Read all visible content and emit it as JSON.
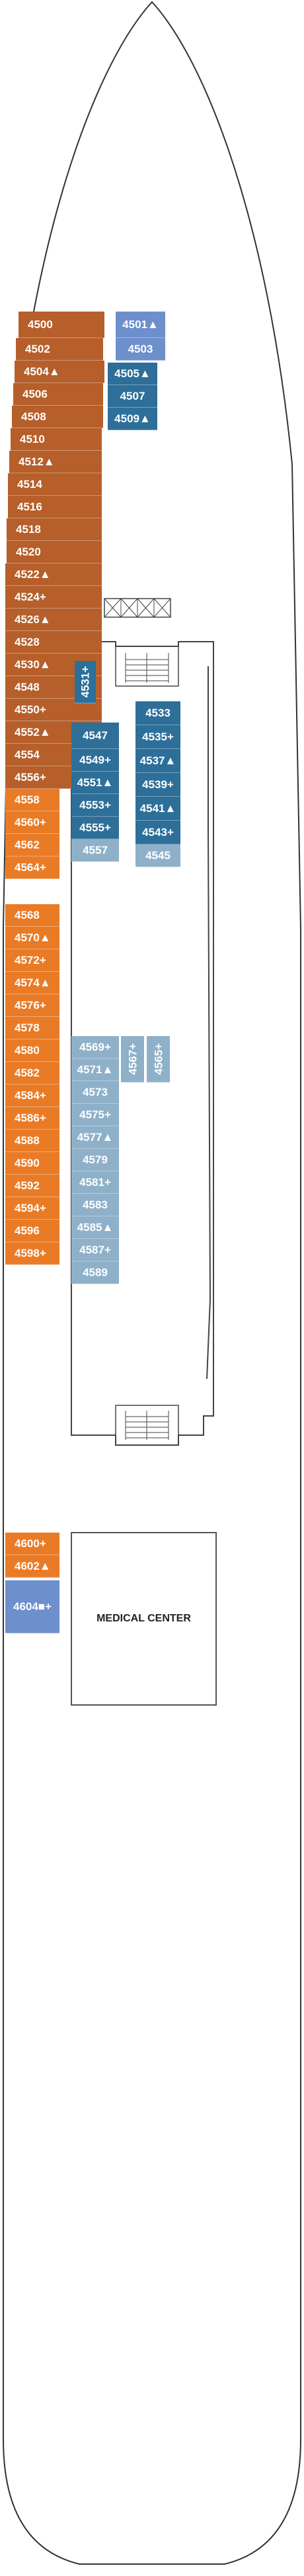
{
  "deck": {
    "hull_color": "#333333",
    "colors": {
      "brown": "#b65f2a",
      "orange": "#ea7b26",
      "navy": "#2d6f99",
      "light_blue": "#8eb1c9",
      "periwinkle": "#6d8fcc"
    },
    "medical_center": "MEDICAL CENTER",
    "cabins": [
      {
        "label": "4500",
        "color": "brown"
      },
      {
        "label": "4502",
        "color": "brown"
      },
      {
        "label": "4504▲",
        "color": "brown"
      },
      {
        "label": "4506",
        "color": "brown"
      },
      {
        "label": "4508",
        "color": "brown"
      },
      {
        "label": "4510",
        "color": "brown"
      },
      {
        "label": "4512▲",
        "color": "brown"
      },
      {
        "label": "4514",
        "color": "brown"
      },
      {
        "label": "4516",
        "color": "brown"
      },
      {
        "label": "4518",
        "color": "brown"
      },
      {
        "label": "4520",
        "color": "brown"
      },
      {
        "label": "4522▲",
        "color": "brown"
      },
      {
        "label": "4524+",
        "color": "brown"
      },
      {
        "label": "4526▲",
        "color": "brown"
      },
      {
        "label": "4528",
        "color": "brown"
      },
      {
        "label": "4530▲",
        "color": "brown"
      },
      {
        "label": "4548",
        "color": "brown"
      },
      {
        "label": "4550+",
        "color": "brown"
      },
      {
        "label": "4552▲",
        "color": "brown"
      },
      {
        "label": "4554",
        "color": "brown"
      },
      {
        "label": "4556+",
        "color": "brown"
      },
      {
        "label": "4558",
        "color": "orange"
      },
      {
        "label": "4560+",
        "color": "orange"
      },
      {
        "label": "4562",
        "color": "orange"
      },
      {
        "label": "4564+",
        "color": "orange"
      },
      {
        "label": "4568",
        "color": "orange"
      },
      {
        "label": "4570▲",
        "color": "orange"
      },
      {
        "label": "4572+",
        "color": "orange"
      },
      {
        "label": "4574▲",
        "color": "orange"
      },
      {
        "label": "4576+",
        "color": "orange"
      },
      {
        "label": "4578",
        "color": "orange"
      },
      {
        "label": "4580",
        "color": "orange"
      },
      {
        "label": "4582",
        "color": "orange"
      },
      {
        "label": "4584+",
        "color": "orange"
      },
      {
        "label": "4586+",
        "color": "orange"
      },
      {
        "label": "4588",
        "color": "orange"
      },
      {
        "label": "4590",
        "color": "orange"
      },
      {
        "label": "4592",
        "color": "orange"
      },
      {
        "label": "4594+",
        "color": "orange"
      },
      {
        "label": "4596",
        "color": "orange"
      },
      {
        "label": "4598+",
        "color": "orange"
      },
      {
        "label": "4600+",
        "color": "orange"
      },
      {
        "label": "4602▲",
        "color": "orange"
      },
      {
        "label": "4604■+",
        "color": "periwinkle"
      },
      {
        "label": "4501▲",
        "color": "periwinkle"
      },
      {
        "label": "4503",
        "color": "periwinkle"
      },
      {
        "label": "4505▲",
        "color": "navy"
      },
      {
        "label": "4507",
        "color": "navy"
      },
      {
        "label": "4509▲",
        "color": "navy"
      },
      {
        "label": "4531+",
        "color": "navy"
      },
      {
        "label": "4547",
        "color": "navy"
      },
      {
        "label": "4549+",
        "color": "navy"
      },
      {
        "label": "4551▲",
        "color": "navy"
      },
      {
        "label": "4553+",
        "color": "navy"
      },
      {
        "label": "4555+",
        "color": "navy"
      },
      {
        "label": "4557",
        "color": "light_blue"
      },
      {
        "label": "4533",
        "color": "navy"
      },
      {
        "label": "4535+",
        "color": "navy"
      },
      {
        "label": "4537▲",
        "color": "navy"
      },
      {
        "label": "4539+",
        "color": "navy"
      },
      {
        "label": "4541▲",
        "color": "navy"
      },
      {
        "label": "4543+",
        "color": "navy"
      },
      {
        "label": "4545",
        "color": "light_blue"
      },
      {
        "label": "4569+",
        "color": "light_blue"
      },
      {
        "label": "4567+",
        "color": "light_blue"
      },
      {
        "label": "4565+",
        "color": "light_blue"
      },
      {
        "label": "4571▲",
        "color": "light_blue"
      },
      {
        "label": "4573",
        "color": "light_blue"
      },
      {
        "label": "4575+",
        "color": "light_blue"
      },
      {
        "label": "4577▲",
        "color": "light_blue"
      },
      {
        "label": "4579",
        "color": "light_blue"
      },
      {
        "label": "4581+",
        "color": "light_blue"
      },
      {
        "label": "4583",
        "color": "light_blue"
      },
      {
        "label": "4585▲",
        "color": "light_blue"
      },
      {
        "label": "4587+",
        "color": "light_blue"
      },
      {
        "label": "4589",
        "color": "light_blue"
      }
    ]
  }
}
